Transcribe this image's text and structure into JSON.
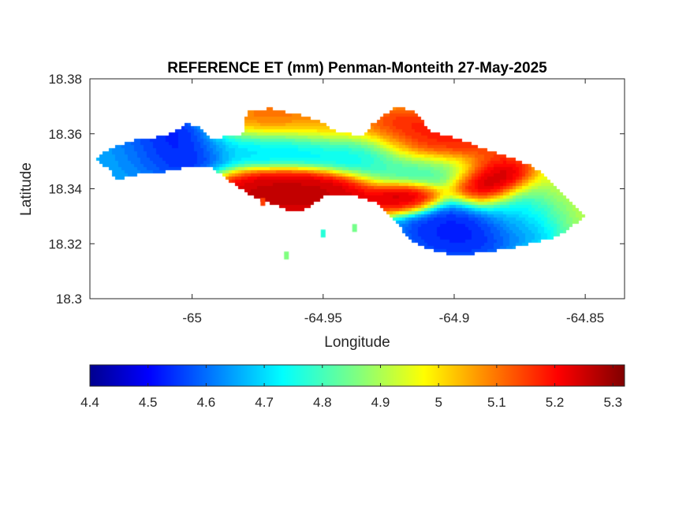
{
  "chart_data": {
    "type": "heatmap",
    "title": "REFERENCE ET (mm) Penman-Monteith 27-May-2025",
    "xlabel": "Longitude",
    "ylabel": "Latitude",
    "xlim": [
      -65.039,
      -64.835
    ],
    "ylim": [
      18.3,
      18.38
    ],
    "x_ticks": [
      -65,
      -64.95,
      -64.9,
      -64.85
    ],
    "x_tick_labels": [
      "-65",
      "-64.95",
      "-64.9",
      "-64.85"
    ],
    "y_ticks": [
      18.3,
      18.32,
      18.34,
      18.36,
      18.38
    ],
    "y_tick_labels": [
      "18.3",
      "18.32",
      "18.34",
      "18.36",
      "18.38"
    ],
    "colormap": "jet",
    "colorbar": {
      "placement": "bottom",
      "range": [
        4.4,
        5.32
      ],
      "ticks": [
        4.4,
        4.5,
        4.6,
        4.7,
        4.8,
        4.9,
        5,
        5.1,
        5.2,
        5.3
      ],
      "tick_labels": [
        "4.4",
        "4.5",
        "4.6",
        "4.7",
        "4.8",
        "4.9",
        "5",
        "5.1",
        "5.2",
        "5.3"
      ]
    },
    "island_outline": [
      [
        -65.037,
        18.351
      ],
      [
        -65.03,
        18.355
      ],
      [
        -65.02,
        18.358
      ],
      [
        -65.01,
        18.359
      ],
      [
        -65.002,
        18.3635
      ],
      [
        -64.996,
        18.362
      ],
      [
        -64.992,
        18.358
      ],
      [
        -64.98,
        18.36
      ],
      [
        -64.979,
        18.3685
      ],
      [
        -64.97,
        18.369
      ],
      [
        -64.96,
        18.367
      ],
      [
        -64.952,
        18.365
      ],
      [
        -64.945,
        18.361
      ],
      [
        -64.935,
        18.359
      ],
      [
        -64.925,
        18.357
      ],
      [
        -64.92,
        18.362
      ],
      [
        -64.915,
        18.3675
      ],
      [
        -64.908,
        18.3605
      ],
      [
        -64.898,
        18.358
      ],
      [
        -64.89,
        18.355
      ],
      [
        -64.88,
        18.352
      ],
      [
        -64.87,
        18.348
      ],
      [
        -64.862,
        18.342
      ],
      [
        -64.855,
        18.335
      ],
      [
        -64.85,
        18.33
      ],
      [
        -64.856,
        18.325
      ],
      [
        -64.862,
        18.322
      ],
      [
        -64.87,
        18.32
      ],
      [
        -64.878,
        18.318
      ],
      [
        -64.886,
        18.317
      ],
      [
        -64.894,
        18.316
      ],
      [
        -64.902,
        18.316
      ],
      [
        -64.91,
        18.318
      ],
      [
        -64.918,
        18.322
      ],
      [
        -64.922,
        18.328
      ],
      [
        -64.93,
        18.335
      ],
      [
        -64.94,
        18.338
      ],
      [
        -64.948,
        18.338
      ],
      [
        -64.955,
        18.333
      ],
      [
        -64.962,
        18.331
      ],
      [
        -64.968,
        18.334
      ],
      [
        -64.975,
        18.336
      ],
      [
        -64.985,
        18.342
      ],
      [
        -64.993,
        18.348
      ],
      [
        -65.0,
        18.348
      ],
      [
        -65.01,
        18.346
      ],
      [
        -65.02,
        18.345
      ],
      [
        -65.028,
        18.343
      ],
      [
        -65.032,
        18.347
      ]
    ],
    "islet_outline": [
      [
        -64.935,
        18.3585
      ],
      [
        -64.932,
        18.3625
      ],
      [
        -64.928,
        18.366
      ],
      [
        -64.922,
        18.3695
      ],
      [
        -64.915,
        18.3685
      ],
      [
        -64.91,
        18.361
      ],
      [
        -64.92,
        18.354
      ],
      [
        -64.93,
        18.351
      ]
    ],
    "cays": [
      [
        -64.95,
        18.324,
        4.78
      ],
      [
        -64.938,
        18.326,
        4.85
      ],
      [
        -64.964,
        18.316,
        4.86
      ],
      [
        -64.973,
        18.3355,
        5.15
      ]
    ],
    "et_centers": [
      [
        -65.009,
        18.355,
        4.48,
        0.011,
        0.007
      ],
      [
        -65.025,
        18.351,
        4.66,
        0.012,
        0.007
      ],
      [
        -64.965,
        18.356,
        4.7,
        0.02,
        0.004
      ],
      [
        -64.935,
        18.354,
        4.73,
        0.01,
        0.004
      ],
      [
        -64.912,
        18.347,
        4.78,
        0.012,
        0.004
      ],
      [
        -64.963,
        18.338,
        5.28,
        0.018,
        0.0045
      ],
      [
        -64.97,
        18.364,
        5.12,
        0.012,
        0.004
      ],
      [
        -64.945,
        18.362,
        5.1,
        0.011,
        0.004
      ],
      [
        -64.922,
        18.36,
        5.2,
        0.01,
        0.004
      ],
      [
        -64.905,
        18.357,
        5.2,
        0.012,
        0.005
      ],
      [
        -64.918,
        18.337,
        5.28,
        0.007,
        0.003
      ],
      [
        -64.886,
        18.342,
        5.3,
        0.008,
        0.005
      ],
      [
        -64.863,
        18.335,
        4.95,
        0.009,
        0.005
      ],
      [
        -64.898,
        18.325,
        4.52,
        0.012,
        0.006
      ],
      [
        -64.875,
        18.329,
        4.65,
        0.008,
        0.005
      ],
      [
        -64.87,
        18.333,
        4.7,
        0.008,
        0.004
      ]
    ]
  }
}
